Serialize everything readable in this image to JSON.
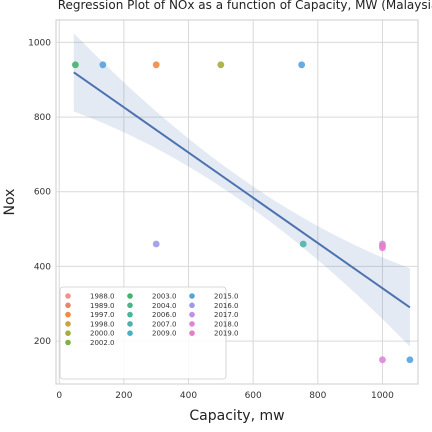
{
  "chart_data": {
    "type": "scatter",
    "title": "Regression Plot of NOx as a function of Capacity, MW (Malaysia",
    "xlabel": "Capacity, mw",
    "ylabel": "Nox",
    "xlim": [
      -10,
      1110
    ],
    "ylim": [
      85,
      1060
    ],
    "xticks": [
      0,
      200,
      400,
      600,
      800,
      1000
    ],
    "yticks": [
      200,
      400,
      600,
      800,
      1000
    ],
    "grid": true,
    "legend_position": "lower-left",
    "regression": {
      "x": [
        45,
        1085
      ],
      "y": [
        920,
        290
      ],
      "color": "#4c72b0",
      "ci_color": "#4c72b0"
    },
    "series": [
      {
        "name": "1988.0",
        "color": "#f0948a",
        "x": [],
        "y": []
      },
      {
        "name": "1989.0",
        "color": "#ec8467",
        "x": [],
        "y": []
      },
      {
        "name": "1997.0",
        "color": "#f08a44",
        "x": [
          300
        ],
        "y": [
          940
        ]
      },
      {
        "name": "1998.0",
        "color": "#c9a53b",
        "x": [],
        "y": []
      },
      {
        "name": "2000.0",
        "color": "#a6ac3a",
        "x": [
          500
        ],
        "y": [
          940
        ]
      },
      {
        "name": "2002.0",
        "color": "#7bb346",
        "x": [],
        "y": []
      },
      {
        "name": "2003.0",
        "color": "#45b36b",
        "x": [
          50
        ],
        "y": [
          940
        ]
      },
      {
        "name": "2004.0",
        "color": "#4bb589",
        "x": [],
        "y": []
      },
      {
        "name": "2006.0",
        "color": "#4db49c",
        "x": [],
        "y": []
      },
      {
        "name": "2007.0",
        "color": "#4cb3aa",
        "x": [
          755
        ],
        "y": [
          460
        ]
      },
      {
        "name": "2009.0",
        "color": "#4bafbf",
        "x": [],
        "y": []
      },
      {
        "name": "2015.0",
        "color": "#56a3dd",
        "x": [
          135,
          750,
          1085
        ],
        "y": [
          940,
          940,
          150
        ]
      },
      {
        "name": "2016.0",
        "color": "#9b9ae6",
        "x": [
          300
        ],
        "y": [
          460
        ]
      },
      {
        "name": "2017.0",
        "color": "#c38fe6",
        "x": [
          1000
        ],
        "y": [
          460
        ]
      },
      {
        "name": "2018.0",
        "color": "#dd85dd",
        "x": [
          1000,
          1000
        ],
        "y": [
          450,
          150
        ]
      },
      {
        "name": "2019.0",
        "color": "#e57ec8",
        "x": [
          1000
        ],
        "y": [
          455
        ]
      }
    ]
  }
}
